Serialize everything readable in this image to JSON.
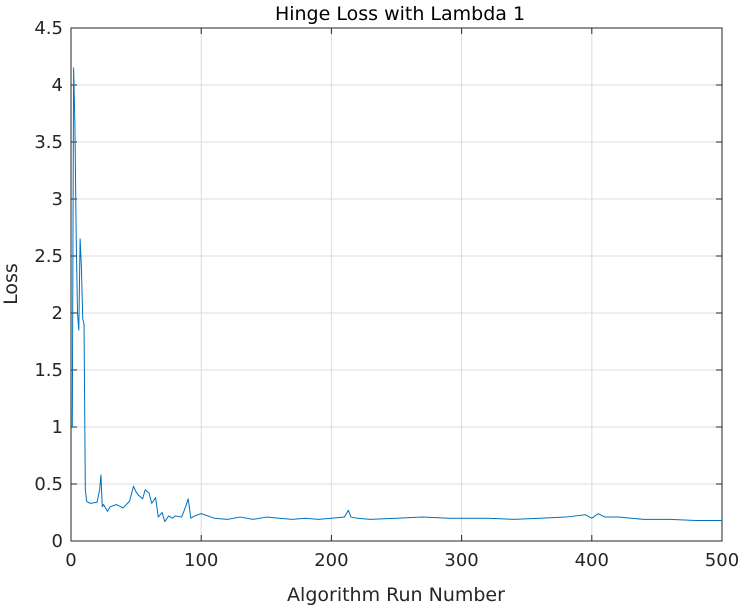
{
  "chart_data": {
    "type": "line",
    "title": "Hinge Loss with Lambda 1",
    "xlabel": "Algorithm Run Number",
    "ylabel": "Loss",
    "xlim": [
      0,
      500
    ],
    "ylim": [
      0,
      4.5
    ],
    "xticks": [
      0,
      100,
      200,
      300,
      400,
      500
    ],
    "yticks": [
      0,
      0.5,
      1,
      1.5,
      2,
      2.5,
      3,
      3.5,
      4,
      4.5
    ],
    "grid": true,
    "color": "#0072bd",
    "series": [
      {
        "x": [
          1,
          2,
          3,
          4,
          5,
          6,
          7,
          8,
          9,
          10,
          11,
          12,
          13,
          15,
          20,
          22,
          23,
          24,
          25,
          28,
          30,
          35,
          40,
          45,
          48,
          50,
          52,
          55,
          57,
          60,
          62,
          65,
          67,
          70,
          72,
          75,
          78,
          80,
          85,
          88,
          90,
          92,
          95,
          100,
          110,
          120,
          130,
          140,
          150,
          160,
          170,
          180,
          190,
          200,
          210,
          213,
          215,
          220,
          230,
          250,
          270,
          290,
          300,
          320,
          340,
          360,
          380,
          395,
          400,
          405,
          410,
          420,
          440,
          460,
          480,
          500
        ],
        "y": [
          1.0,
          4.15,
          3.65,
          2.65,
          2.0,
          1.85,
          2.65,
          2.4,
          1.95,
          1.9,
          0.45,
          0.35,
          0.34,
          0.33,
          0.34,
          0.45,
          0.58,
          0.3,
          0.32,
          0.26,
          0.3,
          0.32,
          0.29,
          0.35,
          0.48,
          0.43,
          0.4,
          0.37,
          0.45,
          0.42,
          0.33,
          0.38,
          0.21,
          0.25,
          0.17,
          0.22,
          0.2,
          0.22,
          0.21,
          0.3,
          0.37,
          0.2,
          0.22,
          0.24,
          0.2,
          0.19,
          0.21,
          0.19,
          0.21,
          0.2,
          0.19,
          0.2,
          0.19,
          0.2,
          0.21,
          0.27,
          0.21,
          0.2,
          0.19,
          0.2,
          0.21,
          0.2,
          0.2,
          0.2,
          0.19,
          0.2,
          0.21,
          0.23,
          0.2,
          0.24,
          0.21,
          0.21,
          0.19,
          0.19,
          0.18,
          0.18
        ]
      }
    ]
  }
}
